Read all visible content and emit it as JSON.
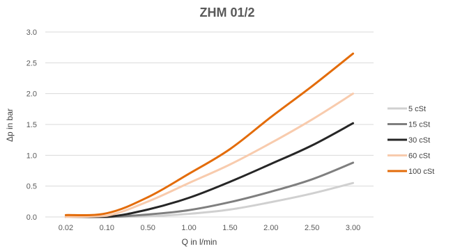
{
  "chart_data": {
    "type": "line",
    "title": "ZHM 01/2",
    "xlabel": "Q in l/min",
    "ylabel": "Δp in bar",
    "categories": [
      "0.02",
      "0.10",
      "0.50",
      "1.00",
      "1.50",
      "2.00",
      "2.50",
      "3.00"
    ],
    "y_ticks": [
      "0.0",
      "0.5",
      "1.0",
      "1.5",
      "2.0",
      "2.5",
      "3.0"
    ],
    "ylim": [
      0,
      3
    ],
    "grid": "horizontal",
    "legend_position": "right",
    "series": [
      {
        "name": "5 cSt",
        "color": "#d0d0d0",
        "values": [
          0.0,
          0.0,
          0.01,
          0.05,
          0.12,
          0.24,
          0.38,
          0.55
        ]
      },
      {
        "name": "15 cSt",
        "color": "#7f7f7f",
        "values": [
          0.0,
          0.0,
          0.04,
          0.11,
          0.24,
          0.41,
          0.61,
          0.88
        ]
      },
      {
        "name": "30 cSt",
        "color": "#262626",
        "values": [
          0.0,
          0.0,
          0.12,
          0.31,
          0.57,
          0.86,
          1.16,
          1.52
        ]
      },
      {
        "name": "60 cSt",
        "color": "#f8cbad",
        "values": [
          0.0,
          0.02,
          0.25,
          0.55,
          0.85,
          1.2,
          1.58,
          2.0
        ]
      },
      {
        "name": "100 cSt",
        "color": "#e36c0a",
        "values": [
          0.03,
          0.06,
          0.32,
          0.7,
          1.1,
          1.62,
          2.12,
          2.65
        ]
      }
    ]
  }
}
